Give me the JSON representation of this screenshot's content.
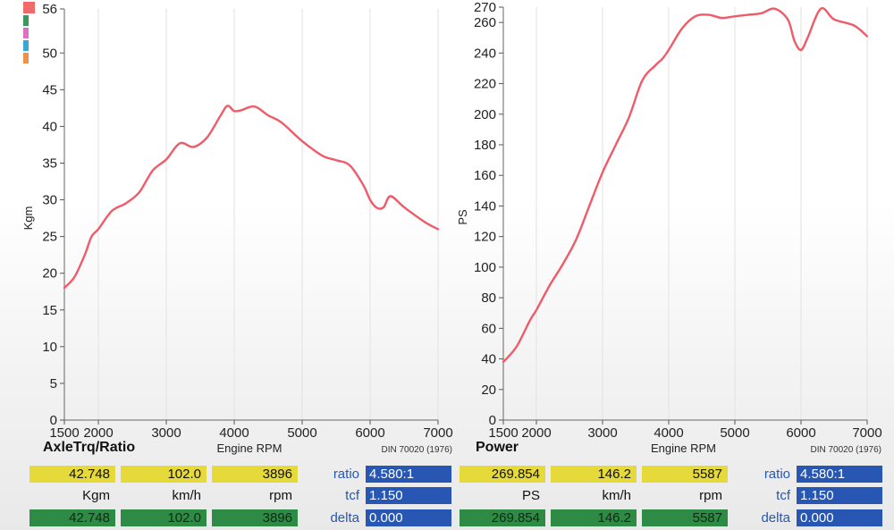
{
  "legend_colors": [
    "#f06a6a",
    "#3b9a5b",
    "#e06fc2",
    "#3aa7d8",
    "#f0904a"
  ],
  "chart_data": [
    {
      "type": "line",
      "title": "AxleTrq/Ratio",
      "xlabel": "Engine RPM",
      "ylabel": "Kgm",
      "note": "DIN 70020 (1976)",
      "xlim": [
        1500,
        7000
      ],
      "ylim": [
        0,
        56
      ],
      "xticks": [
        "1500",
        "2000",
        "3000",
        "4000",
        "5000",
        "6000",
        "7000"
      ],
      "yticks": [
        "0",
        "5",
        "10",
        "15",
        "20",
        "25",
        "30",
        "35",
        "40",
        "45",
        "50",
        "56"
      ],
      "grid": "vertical",
      "color": "#ef5b68",
      "series": [
        {
          "x": [
            1500,
            1650,
            1800,
            1900,
            2000,
            2200,
            2400,
            2600,
            2800,
            3000,
            3200,
            3400,
            3600,
            3800,
            3900,
            4000,
            4100,
            4300,
            4500,
            4700,
            5000,
            5300,
            5500,
            5700,
            5900,
            6000,
            6100,
            6200,
            6300,
            6500,
            6800,
            7000
          ],
          "values": [
            18.0,
            19.5,
            22.5,
            25.0,
            26.0,
            28.5,
            29.5,
            31.0,
            34.0,
            35.5,
            37.7,
            37.2,
            38.5,
            41.5,
            42.8,
            42.1,
            42.2,
            42.7,
            41.5,
            40.5,
            38.0,
            36.0,
            35.4,
            34.7,
            32.0,
            30.0,
            28.9,
            29.0,
            30.5,
            29.0,
            27.0,
            26.0
          ]
        }
      ]
    },
    {
      "type": "line",
      "title": "Power",
      "xlabel": "Engine RPM",
      "ylabel": "PS",
      "note": "DIN 70020 (1976)",
      "xlim": [
        1500,
        7000
      ],
      "ylim": [
        0,
        270
      ],
      "xticks": [
        "1500",
        "2000",
        "3000",
        "4000",
        "5000",
        "6000",
        "7000"
      ],
      "yticks": [
        "0",
        "20",
        "40",
        "60",
        "80",
        "100",
        "120",
        "140",
        "160",
        "180",
        "200",
        "220",
        "240",
        "260",
        "270"
      ],
      "grid": "vertical",
      "color": "#ef5b68",
      "series": [
        {
          "x": [
            1500,
            1700,
            1900,
            2000,
            2200,
            2400,
            2600,
            2800,
            3000,
            3200,
            3400,
            3600,
            3800,
            3900,
            4000,
            4200,
            4400,
            4600,
            4800,
            5000,
            5200,
            5400,
            5600,
            5800,
            5900,
            6000,
            6100,
            6300,
            6500,
            6800,
            7000
          ],
          "values": [
            38,
            48,
            65,
            72,
            88,
            102,
            118,
            140,
            162,
            180,
            198,
            222,
            232,
            236,
            242,
            256,
            264,
            265,
            263,
            264,
            265,
            266,
            269,
            262,
            248,
            242,
            250,
            269,
            262,
            258,
            251
          ]
        }
      ]
    }
  ],
  "panels": [
    {
      "title": "AxleTrq/Ratio",
      "values": [
        "42.748",
        "102.0",
        "3896"
      ],
      "units": [
        "Kgm",
        "km/h",
        "rpm"
      ],
      "deltas": [
        "42.748",
        "102.0",
        "3896"
      ],
      "params": [
        {
          "label": "ratio",
          "value": "4.580:1"
        },
        {
          "label": "tcf",
          "value": "1.150"
        },
        {
          "label": "delta",
          "value": "0.000"
        }
      ]
    },
    {
      "title": "Power",
      "values": [
        "269.854",
        "146.2",
        "5587"
      ],
      "units": [
        "PS",
        "km/h",
        "rpm"
      ],
      "deltas": [
        "269.854",
        "146.2",
        "5587"
      ],
      "params": [
        {
          "label": "ratio",
          "value": "4.580:1"
        },
        {
          "label": "tcf",
          "value": "1.150"
        },
        {
          "label": "delta",
          "value": "0.000"
        }
      ]
    }
  ]
}
